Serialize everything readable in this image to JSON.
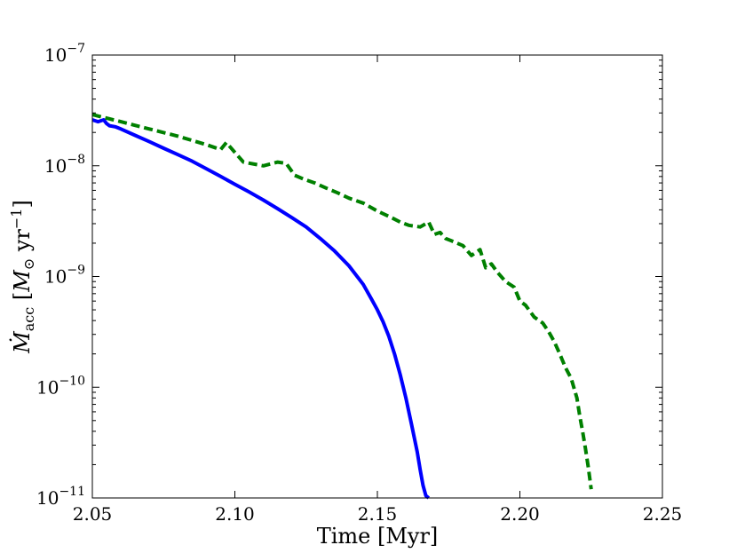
{
  "chart_data": {
    "type": "line",
    "title": "",
    "xlabel": "Time [Myr]",
    "ylabel": {
      "symbol": "Ṁ",
      "subscript": "acc",
      "unit_open": " [",
      "unit_symbol": "M",
      "unit_sub": "⊙",
      "unit_mid": " yr",
      "unit_exp": "−1",
      "unit_close": "]"
    },
    "xlim": [
      2.05,
      2.25
    ],
    "ylim": [
      1e-11,
      1e-07
    ],
    "yscale": "log",
    "grid": false,
    "xticks": [
      {
        "value": 2.05,
        "label": "2.05"
      },
      {
        "value": 2.1,
        "label": "2.10"
      },
      {
        "value": 2.15,
        "label": "2.15"
      },
      {
        "value": 2.2,
        "label": "2.20"
      },
      {
        "value": 2.25,
        "label": "2.25"
      }
    ],
    "yticks": [
      {
        "value": 1e-11,
        "base": "10",
        "exp": "−11"
      },
      {
        "value": 1e-10,
        "base": "10",
        "exp": "−10"
      },
      {
        "value": 1e-09,
        "base": "10",
        "exp": "−9"
      },
      {
        "value": 1e-08,
        "base": "10",
        "exp": "−8"
      },
      {
        "value": 1e-07,
        "base": "10",
        "exp": "−7"
      }
    ],
    "series": [
      {
        "color": "#0000ff",
        "style": "solid",
        "x": [
          2.05,
          2.052,
          2.054,
          2.055,
          2.056,
          2.058,
          2.06,
          2.065,
          2.07,
          2.075,
          2.08,
          2.085,
          2.09,
          2.095,
          2.1,
          2.105,
          2.11,
          2.115,
          2.12,
          2.125,
          2.13,
          2.135,
          2.14,
          2.145,
          2.148,
          2.15,
          2.152,
          2.154,
          2.156,
          2.158,
          2.16,
          2.162,
          2.164,
          2.165,
          2.166,
          2.167,
          2.168
        ],
        "y": [
          2.6e-08,
          2.5e-08,
          2.6e-08,
          2.4e-08,
          2.3e-08,
          2.25e-08,
          2.15e-08,
          1.88e-08,
          1.65e-08,
          1.44e-08,
          1.26e-08,
          1.1e-08,
          9.4e-09,
          8e-09,
          6.8e-09,
          5.8e-09,
          4.9e-09,
          4.1e-09,
          3.4e-09,
          2.8e-09,
          2.2e-09,
          1.7e-09,
          1.25e-09,
          8.5e-10,
          6.2e-10,
          5e-10,
          3.9e-10,
          2.9e-10,
          2e-10,
          1.3e-10,
          8e-11,
          4.6e-11,
          2.6e-11,
          1.8e-11,
          1.3e-11,
          1.05e-11,
          1e-11
        ]
      },
      {
        "color": "#008000",
        "style": "dashed",
        "x": [
          2.05,
          2.06,
          2.07,
          2.08,
          2.09,
          2.095,
          2.097,
          2.1,
          2.103,
          2.11,
          2.115,
          2.118,
          2.121,
          2.124,
          2.128,
          2.132,
          2.136,
          2.14,
          2.145,
          2.15,
          2.155,
          2.158,
          2.161,
          2.165,
          2.168,
          2.17,
          2.172,
          2.174,
          2.176,
          2.18,
          2.183,
          2.186,
          2.188,
          2.19,
          2.192,
          2.195,
          2.198,
          2.2,
          2.202,
          2.205,
          2.208,
          2.21,
          2.212,
          2.214,
          2.216,
          2.218,
          2.22,
          2.221,
          2.222,
          2.223,
          2.224,
          2.225
        ],
        "y": [
          2.9e-08,
          2.5e-08,
          2.15e-08,
          1.85e-08,
          1.55e-08,
          1.4e-08,
          1.62e-08,
          1.32e-08,
          1.08e-08,
          1e-08,
          1.08e-08,
          1.05e-08,
          8.2e-09,
          7.6e-09,
          7e-09,
          6.3e-09,
          5.7e-09,
          5.1e-09,
          4.6e-09,
          3.9e-09,
          3.4e-09,
          3.1e-09,
          2.9e-09,
          2.8e-09,
          3.1e-09,
          2.4e-09,
          2.5e-09,
          2.2e-09,
          2.1e-09,
          1.9e-09,
          1.55e-09,
          1.75e-09,
          1.2e-09,
          1.3e-09,
          1.1e-09,
          9e-10,
          8e-10,
          6e-10,
          5.5e-10,
          4.3e-10,
          3.8e-10,
          3.2e-10,
          2.6e-10,
          2e-10,
          1.5e-10,
          1.2e-10,
          8e-11,
          5.5e-11,
          4e-11,
          2.8e-11,
          1.9e-11,
          1.2e-11
        ]
      }
    ]
  }
}
